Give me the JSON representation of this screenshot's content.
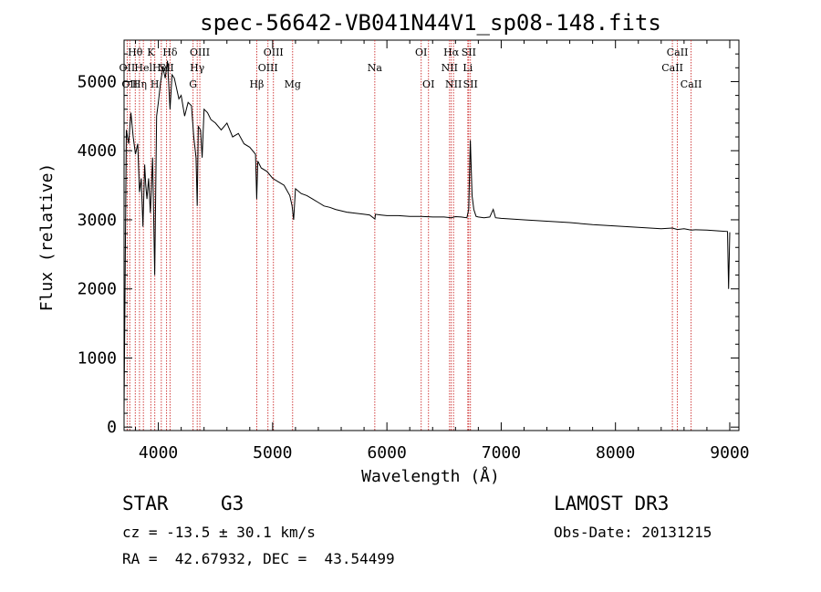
{
  "chart_data": {
    "type": "line",
    "title": "spec-56642-VB041N44V1_sp08-148.fits",
    "xlabel": "Wavelength (Å)",
    "ylabel": "Flux (relative)",
    "xlim": [
      3700,
      9080
    ],
    "ylim": [
      -50,
      5600
    ],
    "xticks": [
      4000,
      5000,
      6000,
      7000,
      8000,
      9000
    ],
    "yticks": [
      0,
      1000,
      2000,
      3000,
      4000,
      5000
    ],
    "grid": false,
    "series": [
      {
        "name": "flux",
        "color": "#000000",
        "x": [
          3700,
          3720,
          3740,
          3760,
          3780,
          3800,
          3820,
          3835,
          3850,
          3865,
          3880,
          3890,
          3900,
          3915,
          3930,
          3950,
          3968,
          3985,
          4000,
          4020,
          4040,
          4060,
          4080,
          4102,
          4120,
          4140,
          4160,
          4180,
          4200,
          4230,
          4260,
          4290,
          4310,
          4330,
          4340,
          4350,
          4370,
          4383,
          4400,
          4430,
          4460,
          4500,
          4550,
          4600,
          4650,
          4700,
          4750,
          4800,
          4850,
          4861,
          4870,
          4900,
          4950,
          5000,
          5050,
          5100,
          5150,
          5170,
          5184,
          5200,
          5250,
          5300,
          5350,
          5400,
          5450,
          5500,
          5550,
          5600,
          5650,
          5700,
          5750,
          5800,
          5850,
          5895,
          5900,
          5950,
          6000,
          6100,
          6200,
          6300,
          6400,
          6500,
          6563,
          6600,
          6650,
          6700,
          6716,
          6730,
          6745,
          6760,
          6780,
          6800,
          6850,
          6900,
          6930,
          6950,
          7000,
          7200,
          7400,
          7600,
          7800,
          8000,
          8200,
          8400,
          8498,
          8542,
          8600,
          8662,
          8700,
          8800,
          8900,
          8980,
          8990,
          9000
        ],
        "values": [
          250,
          4300,
          4100,
          4550,
          4200,
          3950,
          4100,
          3400,
          3600,
          2900,
          3800,
          3500,
          3300,
          3600,
          3100,
          3900,
          2200,
          4500,
          4700,
          5000,
          5200,
          5050,
          5300,
          4600,
          5100,
          5050,
          4900,
          4750,
          4800,
          4500,
          4700,
          4650,
          4200,
          3900,
          3200,
          4350,
          4300,
          3900,
          4600,
          4550,
          4450,
          4400,
          4300,
          4400,
          4200,
          4250,
          4100,
          4050,
          3950,
          3300,
          3850,
          3750,
          3700,
          3600,
          3550,
          3500,
          3350,
          3200,
          3000,
          3450,
          3380,
          3350,
          3300,
          3250,
          3200,
          3180,
          3150,
          3130,
          3110,
          3100,
          3090,
          3080,
          3070,
          3010,
          3080,
          3070,
          3060,
          3060,
          3050,
          3050,
          3040,
          3040,
          3030,
          3045,
          3040,
          3030,
          3150,
          4150,
          3350,
          3150,
          3050,
          3040,
          3030,
          3040,
          3150,
          3030,
          3020,
          3000,
          2980,
          2960,
          2930,
          2910,
          2890,
          2870,
          2880,
          2860,
          2870,
          2850,
          2855,
          2850,
          2840,
          2830,
          2000,
          2820
        ]
      }
    ],
    "lines": [
      {
        "wl": 3727,
        "label": "OII",
        "row": 2
      },
      {
        "wl": 3750,
        "label": "OII",
        "row": 3
      },
      {
        "wl": 3798,
        "label": "Hθ",
        "row": 1
      },
      {
        "wl": 3835,
        "label": "Hη",
        "row": 3
      },
      {
        "wl": 3869,
        "label": "Hel",
        "row": 2
      },
      {
        "wl": 3934,
        "label": "K",
        "row": 1
      },
      {
        "wl": 3969,
        "label": "H",
        "row": 3
      },
      {
        "wl": 4026,
        "label": "Hel",
        "row": 2
      },
      {
        "wl": 4072,
        "label": "SII",
        "row": 2
      },
      {
        "wl": 4102,
        "label": "Hδ",
        "row": 1
      },
      {
        "wl": 4304,
        "label": "G",
        "row": 3
      },
      {
        "wl": 4340,
        "label": "Hγ",
        "row": 2
      },
      {
        "wl": 4363,
        "label": "OIII",
        "row": 1
      },
      {
        "wl": 4861,
        "label": "Hβ",
        "row": 3
      },
      {
        "wl": 4959,
        "label": "OIII",
        "row": 2
      },
      {
        "wl": 5007,
        "label": "OIII",
        "row": 1
      },
      {
        "wl": 5175,
        "label": "Mg",
        "row": 3
      },
      {
        "wl": 5894,
        "label": "Na",
        "row": 2
      },
      {
        "wl": 6300,
        "label": "OI",
        "row": 1
      },
      {
        "wl": 6364,
        "label": "OI",
        "row": 3
      },
      {
        "wl": 6548,
        "label": "NII",
        "row": 2
      },
      {
        "wl": 6563,
        "label": "Hα",
        "row": 1
      },
      {
        "wl": 6583,
        "label": "NII",
        "row": 3
      },
      {
        "wl": 6708,
        "label": "Li",
        "row": 2
      },
      {
        "wl": 6716,
        "label": "SII",
        "row": 1
      },
      {
        "wl": 6731,
        "label": "SII",
        "row": 3
      },
      {
        "wl": 8498,
        "label": "CaII",
        "row": 2
      },
      {
        "wl": 8542,
        "label": "CaII",
        "row": 1
      },
      {
        "wl": 8662,
        "label": "CaII",
        "row": 3
      }
    ]
  },
  "info": {
    "class_label": "STAR",
    "subclass": "G3",
    "survey": "LAMOST DR3",
    "cz": "cz = -13.5 ± 30.1 km/s",
    "obs_date": "Obs-Date: 20131215",
    "radec": "RA =  42.67932, DEC =  43.54499"
  }
}
